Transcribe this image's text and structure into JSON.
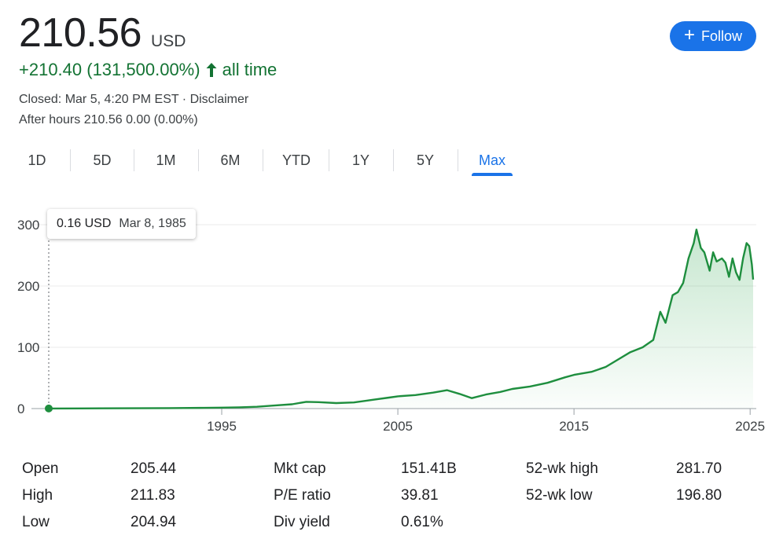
{
  "header": {
    "price": "210.56",
    "currency": "USD",
    "change": "+210.40 (131,500.00%)",
    "change_period": "all time",
    "closed_text": "Closed: Mar 5, 4:20 PM EST · Disclaimer",
    "after_hours_text": "After hours 210.56 0.00 (0.00%)",
    "accent_color": "#137333"
  },
  "follow_button": {
    "label": "Follow",
    "icon": "plus-icon",
    "color": "#1a73e8"
  },
  "tabs": [
    {
      "label": "1D",
      "active": false
    },
    {
      "label": "5D",
      "active": false
    },
    {
      "label": "1M",
      "active": false
    },
    {
      "label": "6M",
      "active": false
    },
    {
      "label": "YTD",
      "active": false
    },
    {
      "label": "1Y",
      "active": false
    },
    {
      "label": "5Y",
      "active": false
    },
    {
      "label": "Max",
      "active": true
    }
  ],
  "tooltip": {
    "value": "0.16 USD",
    "date": "Mar 8, 1985"
  },
  "chart_data": {
    "type": "area",
    "x_ticks": [
      "1995",
      "2005",
      "2015",
      "2025"
    ],
    "x_tick_years": [
      1995,
      2005,
      2015,
      2025
    ],
    "y_ticks": [
      "300",
      "200",
      "100",
      "0"
    ],
    "y_tick_values": [
      300,
      200,
      100,
      0
    ],
    "xlim": [
      1985.18,
      2025.17
    ],
    "ylim": [
      0,
      300
    ],
    "grid": true,
    "line_color": "#1e8e3e",
    "series": [
      {
        "x": [
          1985.18,
          1987.0,
          1990.0,
          1992.0,
          1994.0,
          1995.0,
          1996.0,
          1997.0,
          1998.0,
          1999.0,
          1999.8,
          2000.5,
          2001.5,
          2002.5,
          2003.5,
          2004.5,
          2005.0,
          2006.0,
          2007.0,
          2007.8,
          2008.5,
          2009.2,
          2010.0,
          2010.8,
          2011.5,
          2012.5,
          2013.5,
          2014.5,
          2015.0,
          2016.0,
          2016.8,
          2017.5,
          2018.2,
          2018.9,
          2019.5,
          2019.9,
          2020.2,
          2020.6,
          2020.9,
          2021.2,
          2021.5,
          2021.8,
          2021.95,
          2022.2,
          2022.4,
          2022.7,
          2022.9,
          2023.1,
          2023.4,
          2023.6,
          2023.8,
          2024.0,
          2024.2,
          2024.4,
          2024.6,
          2024.8,
          2024.95,
          2025.1,
          2025.17
        ],
        "y": [
          0.16,
          0.2,
          0.5,
          0.8,
          1.2,
          1.5,
          2.0,
          3.0,
          5.0,
          7.0,
          11.0,
          10.5,
          9.0,
          10.0,
          14.0,
          18.0,
          20.0,
          22.0,
          26.0,
          30.0,
          24.0,
          17.0,
          23.0,
          27.0,
          32.0,
          36.0,
          42.0,
          51.0,
          55.0,
          60.0,
          68.0,
          80.0,
          92.0,
          100.0,
          112.0,
          158.0,
          140.0,
          185.0,
          190.0,
          205.0,
          245.0,
          270.0,
          292.0,
          262.0,
          255.0,
          225.0,
          255.0,
          240.0,
          245.0,
          238.0,
          215.0,
          245.0,
          222.0,
          210.0,
          245.0,
          270.0,
          265.0,
          235.0,
          210.56
        ]
      }
    ]
  },
  "stats": [
    {
      "label": "Open",
      "value": "205.44"
    },
    {
      "label": "High",
      "value": "211.83"
    },
    {
      "label": "Low",
      "value": "204.94"
    },
    {
      "label": "Mkt cap",
      "value": "151.41B"
    },
    {
      "label": "P/E ratio",
      "value": "39.81"
    },
    {
      "label": "Div yield",
      "value": "0.61%"
    },
    {
      "label": "52-wk high",
      "value": "281.70"
    },
    {
      "label": "52-wk low",
      "value": "196.80"
    }
  ]
}
